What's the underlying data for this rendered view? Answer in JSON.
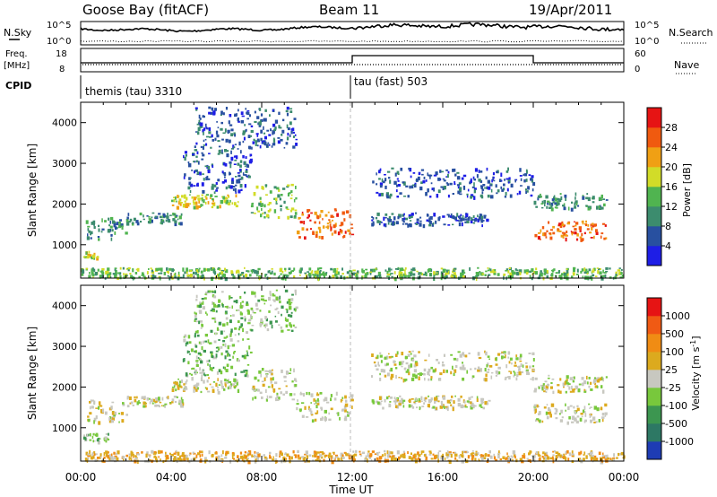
{
  "header": {
    "station": "Goose Bay (fitACF)",
    "beam": "Beam 11",
    "date": "19/Apr/2011"
  },
  "chart_data": [
    {
      "type": "line",
      "panel": "noise",
      "left_label": "N.Sky",
      "right_label": "N.Search",
      "left_ticks": [
        "10^5",
        "10^0"
      ],
      "right_ticks": [
        "10^5",
        "10^0"
      ],
      "x_range_hours": [
        0,
        24
      ]
    },
    {
      "type": "line",
      "panel": "frequency",
      "left_label_1": "Freq.",
      "left_label_2": "[MHz]",
      "right_label": "Nave",
      "left_ticks": [
        "18",
        "8"
      ],
      "right_ticks": [
        "60",
        "0"
      ],
      "freq_mhz": [
        {
          "x": 0,
          "y": 12
        },
        {
          "x": 12,
          "y": 12
        },
        {
          "x": 12,
          "y": 16
        },
        {
          "x": 20,
          "y": 16
        },
        {
          "x": 20,
          "y": 12
        },
        {
          "x": 24,
          "y": 12
        }
      ]
    },
    {
      "type": "table",
      "panel": "cpid",
      "label": "CPID",
      "segments": [
        {
          "start": 0,
          "end": 12,
          "text": "themis (tau) 3310"
        },
        {
          "start": 12,
          "end": 24,
          "text": "tau (fast) 503"
        }
      ]
    },
    {
      "type": "heatmap",
      "panel": "power",
      "ylabel": "Slant Range [km]",
      "ylim": [
        180,
        4500
      ],
      "yticks": [
        1000,
        2000,
        3000,
        4000
      ],
      "colorbar_label": "Power [dB]",
      "colorbar_ticks": [
        "4",
        "8",
        "12",
        "16",
        "20",
        "24",
        "28"
      ],
      "colors": [
        "#1e1ee6",
        "#2850a0",
        "#3c8c6e",
        "#50b450",
        "#d2dc28",
        "#f0a014",
        "#f05a0f",
        "#e61414"
      ],
      "features": [
        {
          "t0": 0.2,
          "t1": 2.0,
          "r0": 1150,
          "r1": 1700,
          "level": 2
        },
        {
          "t0": 0.1,
          "t1": 0.8,
          "r0": 700,
          "r1": 850,
          "level": 4
        },
        {
          "t0": 2.0,
          "t1": 4.5,
          "r0": 1550,
          "r1": 1800,
          "level": 2
        },
        {
          "t0": 4.0,
          "t1": 7.0,
          "r0": 1950,
          "r1": 2250,
          "level": 4
        },
        {
          "t0": 4.5,
          "t1": 7.5,
          "r0": 2300,
          "r1": 3400,
          "level": 1
        },
        {
          "t0": 5.0,
          "t1": 9.5,
          "r0": 3400,
          "r1": 4400,
          "level": 1
        },
        {
          "t0": 7.5,
          "t1": 9.5,
          "r0": 1700,
          "r1": 2500,
          "level": 3
        },
        {
          "t0": 9.5,
          "t1": 12.0,
          "r0": 1200,
          "r1": 1900,
          "level": 6
        },
        {
          "t0": 12.8,
          "t1": 20.0,
          "r0": 2200,
          "r1": 2900,
          "level": 1
        },
        {
          "t0": 12.8,
          "t1": 18.0,
          "r0": 1500,
          "r1": 1800,
          "level": 1
        },
        {
          "t0": 20.0,
          "t1": 23.2,
          "r0": 1900,
          "r1": 2300,
          "level": 2
        },
        {
          "t0": 20.0,
          "t1": 23.2,
          "r0": 1150,
          "r1": 1600,
          "level": 6
        },
        {
          "t0": 0.0,
          "t1": 24.0,
          "r0": 200,
          "r1": 450,
          "level": 3
        }
      ]
    },
    {
      "type": "heatmap",
      "panel": "velocity",
      "ylabel": "Slant Range [km]",
      "ylim": [
        180,
        4500
      ],
      "yticks": [
        1000,
        2000,
        3000,
        4000
      ],
      "xlabel": "Time UT",
      "x_ticks": [
        "00:00",
        "04:00",
        "08:00",
        "12:00",
        "16:00",
        "20:00",
        "00:00"
      ],
      "colorbar_label": "Velocity [m s^-1]",
      "colorbar_ticks": [
        "1000",
        "500",
        "100",
        "25",
        "-25",
        "-100",
        "-500",
        "-1000"
      ],
      "colors": [
        "#1e3cb4",
        "#2d7864",
        "#3c9650",
        "#78c83c",
        "#c8c8c0",
        "#dcaa1e",
        "#f08c14",
        "#f05a14",
        "#e61414"
      ],
      "features": [
        {
          "t0": 0.2,
          "t1": 2.0,
          "r0": 1150,
          "r1": 1700,
          "level": 4
        },
        {
          "t0": 0.1,
          "t1": 1.2,
          "r0": 680,
          "r1": 880,
          "level": 3
        },
        {
          "t0": 2.0,
          "t1": 4.5,
          "r0": 1550,
          "r1": 1800,
          "level": 4
        },
        {
          "t0": 4.0,
          "t1": 7.0,
          "r0": 1900,
          "r1": 2250,
          "level": 4
        },
        {
          "t0": 4.5,
          "t1": 7.5,
          "r0": 2300,
          "r1": 3400,
          "level": 3
        },
        {
          "t0": 5.0,
          "t1": 9.5,
          "r0": 3400,
          "r1": 4400,
          "level": 3
        },
        {
          "t0": 7.5,
          "t1": 9.5,
          "r0": 1700,
          "r1": 2500,
          "level": 4
        },
        {
          "t0": 9.5,
          "t1": 12.0,
          "r0": 1200,
          "r1": 1900,
          "level": 4
        },
        {
          "t0": 12.8,
          "t1": 20.0,
          "r0": 2200,
          "r1": 2900,
          "level": 4
        },
        {
          "t0": 12.8,
          "t1": 18.0,
          "r0": 1500,
          "r1": 1800,
          "level": 4
        },
        {
          "t0": 20.0,
          "t1": 23.2,
          "r0": 1900,
          "r1": 2300,
          "level": 4
        },
        {
          "t0": 20.0,
          "t1": 23.2,
          "r0": 1150,
          "r1": 1600,
          "level": 4
        },
        {
          "t0": 0.0,
          "t1": 24.0,
          "r0": 200,
          "r1": 450,
          "level": 5
        }
      ]
    }
  ]
}
